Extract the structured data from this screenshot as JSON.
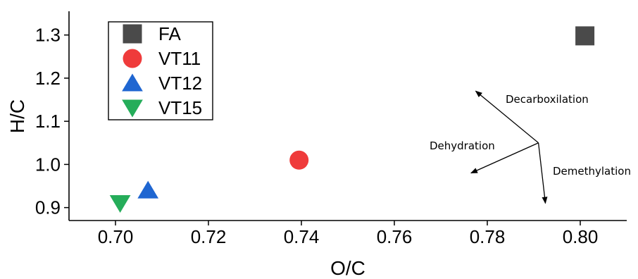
{
  "chart_data": {
    "type": "scatter",
    "xlabel": "O/C",
    "ylabel": "H/C",
    "xlim": [
      0.69,
      0.81
    ],
    "ylim": [
      0.87,
      1.355
    ],
    "x_ticks": [
      "0.70",
      "0.72",
      "0.74",
      "0.76",
      "0.78",
      "0.80"
    ],
    "y_ticks": [
      "0.9",
      "1.0",
      "1.1",
      "1.2",
      "1.3"
    ],
    "grid": false,
    "legend_position": "top-left",
    "series": [
      {
        "name": "FA",
        "marker": "square",
        "color": "#4a4a4a",
        "x": 0.801,
        "y": 1.298
      },
      {
        "name": "VT11",
        "marker": "circle",
        "color": "#ef3b3b",
        "x": 0.7395,
        "y": 1.01
      },
      {
        "name": "VT12",
        "marker": "triangle-up",
        "color": "#1f66d1",
        "x": 0.707,
        "y": 0.94
      },
      {
        "name": "VT15",
        "marker": "triangle-down",
        "color": "#25ad5a",
        "x": 0.701,
        "y": 0.91
      }
    ],
    "annotations": {
      "origin": {
        "x": 0.791,
        "y": 1.05
      },
      "arrows": [
        {
          "label": "Decarboxilation",
          "to": {
            "x": 0.7775,
            "y": 1.17
          }
        },
        {
          "label": "Dehydration",
          "to": {
            "x": 0.7765,
            "y": 0.98
          }
        },
        {
          "label": "Demethylation",
          "to": {
            "x": 0.7925,
            "y": 0.91
          }
        }
      ]
    }
  }
}
